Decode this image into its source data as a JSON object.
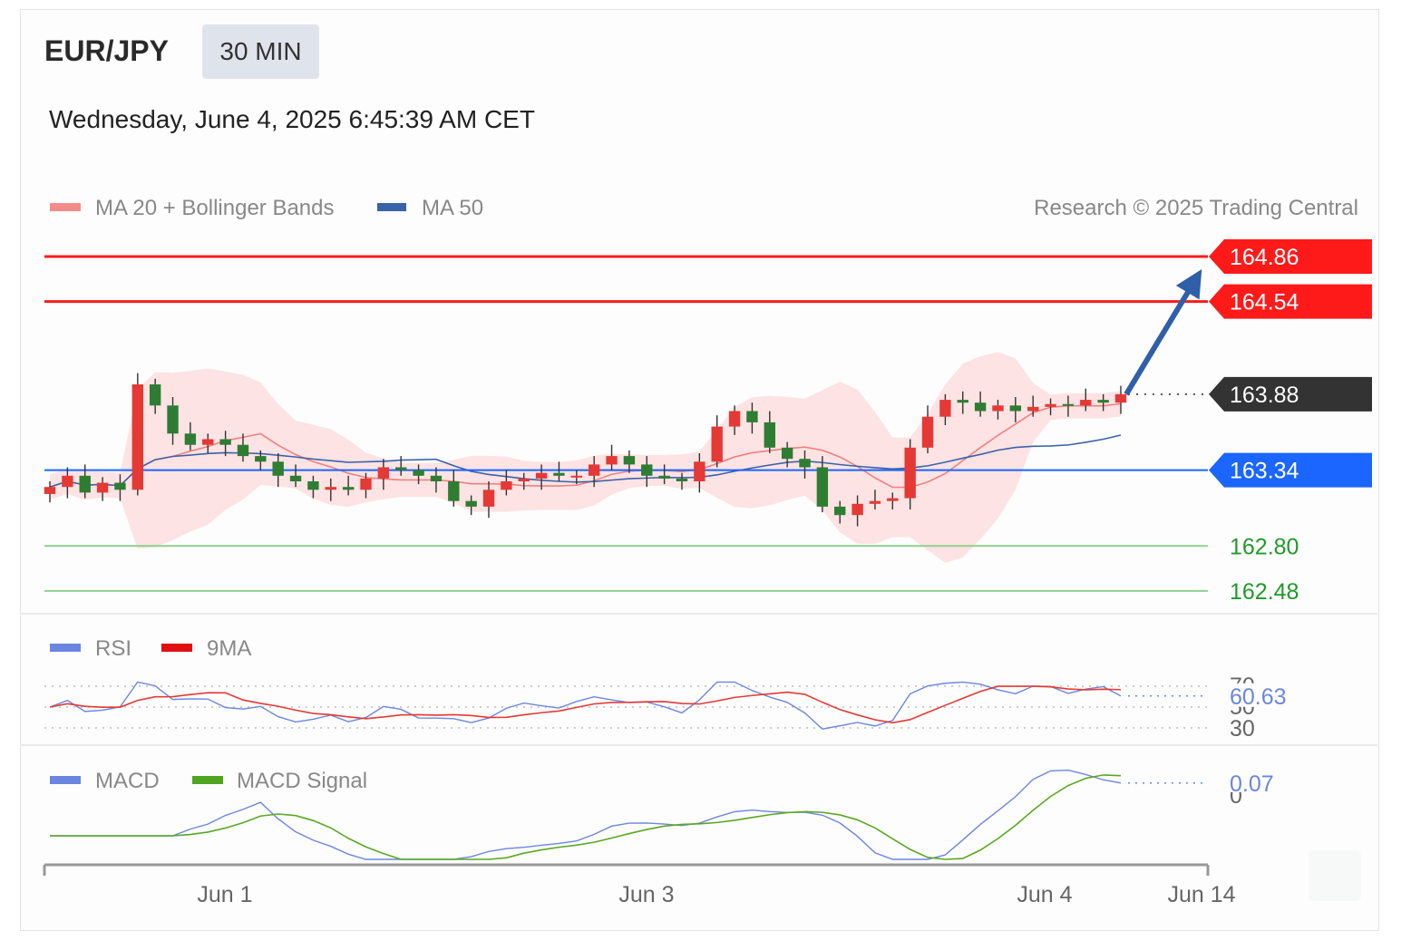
{
  "header": {
    "pair": "EUR/JPY",
    "timeframe": "30 MIN",
    "timestamp": "Wednesday, June 4, 2025 6:45:39 AM CET"
  },
  "legend": {
    "ma20": "MA 20 + Bollinger Bands",
    "ma50": "MA 50",
    "copyright": "Research © 2025 Trading Central"
  },
  "colors": {
    "resistance": "#ff1a1a",
    "support": "#8fd08f",
    "current": "#333333",
    "pivot": "#1a66ff",
    "bollinger": "#fde0e0",
    "ma20": "#f08080",
    "ma50": "#3b62a8",
    "rsi": "#6b86e0",
    "rsi_ma": "#e53935",
    "macd": "#6b86e0",
    "macd_signal": "#5aa820",
    "bull": "#e53935",
    "bear": "#2e7d32"
  },
  "chart_data": [
    {
      "type": "line",
      "title": "EUR/JPY 30 MIN",
      "x_axis_labels": [
        "Jun 1",
        "Jun 3",
        "Jun 4",
        "Jun 14"
      ],
      "levels": [
        {
          "name": "resistance-2",
          "value": 164.86,
          "label": "164.86"
        },
        {
          "name": "resistance-1",
          "value": 164.54,
          "label": "164.54"
        },
        {
          "name": "last-price",
          "value": 163.88,
          "label": "163.88"
        },
        {
          "name": "pivot",
          "value": 163.34,
          "label": "163.34"
        },
        {
          "name": "support-1",
          "value": 162.8,
          "label": "162.80"
        },
        {
          "name": "support-2",
          "value": 162.48,
          "label": "162.48"
        }
      ],
      "price_path": [
        163.22,
        163.3,
        163.18,
        163.25,
        163.2,
        163.95,
        163.8,
        163.6,
        163.52,
        163.56,
        163.52,
        163.44,
        163.4,
        163.3,
        163.26,
        163.2,
        163.22,
        163.2,
        163.28,
        163.36,
        163.34,
        163.3,
        163.26,
        163.12,
        163.08,
        163.2,
        163.26,
        163.28,
        163.32,
        163.3,
        163.3,
        163.38,
        163.44,
        163.38,
        163.3,
        163.28,
        163.26,
        163.4,
        163.65,
        163.76,
        163.68,
        163.5,
        163.42,
        163.36,
        163.08,
        163.02,
        163.1,
        163.12,
        163.14,
        163.5,
        163.72,
        163.84,
        163.82,
        163.76,
        163.8,
        163.76,
        163.79,
        163.81,
        163.8,
        163.84,
        163.82,
        163.88
      ],
      "arrow_target": 164.86,
      "ylim": [
        162.3,
        165.0
      ]
    },
    {
      "type": "line",
      "title": "RSI",
      "series": [
        {
          "name": "RSI",
          "last": 60.63
        },
        {
          "name": "9MA"
        }
      ],
      "levels": [
        70,
        50,
        30
      ],
      "last_label": "60.63",
      "level_labels": [
        "70",
        "50",
        "30"
      ]
    },
    {
      "type": "line",
      "title": "MACD",
      "series": [
        {
          "name": "MACD",
          "last": 0.07
        },
        {
          "name": "MACD Signal"
        }
      ],
      "last_label": "0.07",
      "zero_label": "0"
    }
  ],
  "rsi_legend": {
    "rsi": "RSI",
    "ma": "9MA"
  },
  "macd_legend": {
    "macd": "MACD",
    "signal": "MACD Signal"
  }
}
